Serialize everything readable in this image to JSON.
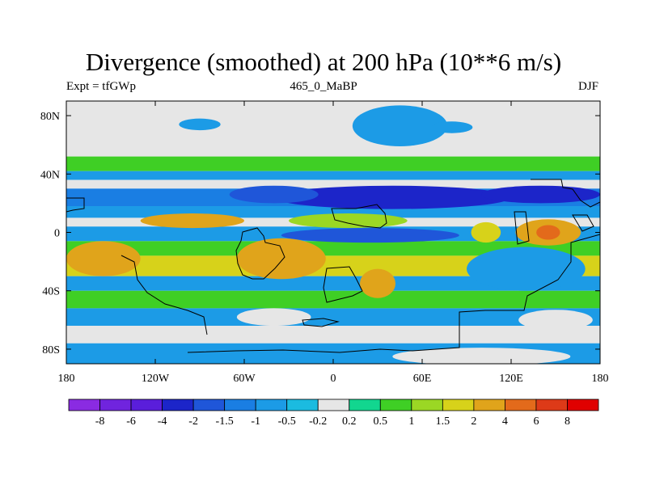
{
  "chart_data": {
    "type": "heatmap",
    "title": "Divergence (smoothed) at 200 hPa (10**6 m/s)",
    "subtitle_left": "Expt = tfGWp",
    "subtitle_center": "465_0_MaBP",
    "subtitle_right": "DJF",
    "x_ticks": [
      "180",
      "120W",
      "60W",
      "0",
      "60E",
      "120E",
      "180"
    ],
    "x_tick_values": [
      -180,
      -120,
      -60,
      0,
      60,
      120,
      180
    ],
    "y_ticks": [
      "80N",
      "40N",
      "0",
      "40S",
      "80S"
    ],
    "y_tick_values": [
      80,
      40,
      0,
      -40,
      -80
    ],
    "xlim": [
      -180,
      180
    ],
    "ylim": [
      -90,
      90
    ],
    "colorbar_labels": [
      "-8",
      "-6",
      "-4",
      "-2",
      "-1.5",
      "-1",
      "-0.5",
      "-0.2",
      "0.2",
      "0.5",
      "1",
      "1.5",
      "2",
      "4",
      "6",
      "8"
    ],
    "colorbar_colors": [
      "#8a2be2",
      "#7024de",
      "#5a1edb",
      "#1c25c9",
      "#1f56d9",
      "#1a7ee3",
      "#1c9be6",
      "#1bbbe0",
      "#e6e6e6",
      "#12d68f",
      "#3fcf25",
      "#9bd724",
      "#d7d21a",
      "#e0a41b",
      "#e36a1b",
      "#dd3a18",
      "#e00000"
    ],
    "bands": [
      {
        "lat_top": 90,
        "lat_bottom": 52,
        "value": 0.0
      },
      {
        "lat_top": 52,
        "lat_bottom": 42,
        "value": 0.8
      },
      {
        "lat_top": 42,
        "lat_bottom": 36,
        "value": -0.6
      },
      {
        "lat_top": 36,
        "lat_bottom": 30,
        "value": 0.0
      },
      {
        "lat_top": 30,
        "lat_bottom": 18,
        "value": -1.2
      },
      {
        "lat_top": 18,
        "lat_bottom": 10,
        "value": -0.7
      },
      {
        "lat_top": 10,
        "lat_bottom": 4,
        "value": 0.0
      },
      {
        "lat_top": 4,
        "lat_bottom": -6,
        "value": -1.0
      },
      {
        "lat_top": -6,
        "lat_bottom": -16,
        "value": 0.6
      },
      {
        "lat_top": -16,
        "lat_bottom": -30,
        "value": 1.6
      },
      {
        "lat_top": -30,
        "lat_bottom": -40,
        "value": -0.6
      },
      {
        "lat_top": -40,
        "lat_bottom": -52,
        "value": 0.7
      },
      {
        "lat_top": -52,
        "lat_bottom": -64,
        "value": -0.7
      },
      {
        "lat_top": -64,
        "lat_bottom": -76,
        "value": 0.0
      },
      {
        "lat_top": -76,
        "lat_bottom": -90,
        "value": -0.6
      }
    ],
    "blobs": [
      {
        "lon": -90,
        "lat": 74,
        "rlon": 14,
        "rlat": 4,
        "value": -0.6
      },
      {
        "lon": 45,
        "lat": 73,
        "rlon": 32,
        "rlat": 14,
        "value": -0.6
      },
      {
        "lon": 80,
        "lat": 72,
        "rlon": 14,
        "rlat": 4,
        "value": -0.6
      },
      {
        "lon": 40,
        "lat": 24,
        "rlon": 80,
        "rlat": 8,
        "value": -2.5
      },
      {
        "lon": 140,
        "lat": 26,
        "rlon": 40,
        "rlat": 6,
        "value": -2.5
      },
      {
        "lon": -40,
        "lat": 26,
        "rlon": 30,
        "rlat": 6,
        "value": -1.8
      },
      {
        "lon": -95,
        "lat": 8,
        "rlon": 35,
        "rlat": 5,
        "value": 2.5
      },
      {
        "lon": 10,
        "lat": 8,
        "rlon": 40,
        "rlat": 5,
        "value": 1.2
      },
      {
        "lon": 145,
        "lat": 0,
        "rlon": 22,
        "rlat": 9,
        "value": 3.5
      },
      {
        "lon": 145,
        "lat": 0,
        "rlon": 8,
        "rlat": 5,
        "value": 5.0
      },
      {
        "lon": 103,
        "lat": 0,
        "rlon": 10,
        "rlat": 7,
        "value": 1.6
      },
      {
        "lon": 25,
        "lat": -2,
        "rlon": 60,
        "rlat": 5,
        "value": -1.8
      },
      {
        "lon": -155,
        "lat": -18,
        "rlon": 25,
        "rlat": 12,
        "value": 2.5
      },
      {
        "lon": -35,
        "lat": -18,
        "rlon": 30,
        "rlat": 14,
        "value": 2.8
      },
      {
        "lon": 30,
        "lat": -35,
        "rlon": 12,
        "rlat": 10,
        "value": 2.2
      },
      {
        "lon": 130,
        "lat": -25,
        "rlon": 40,
        "rlat": 15,
        "value": -0.7
      },
      {
        "lon": -40,
        "lat": -58,
        "rlon": 25,
        "rlat": 6,
        "value": 0.0
      },
      {
        "lon": 150,
        "lat": -60,
        "rlon": 25,
        "rlat": 7,
        "value": 0.0
      },
      {
        "lon": 100,
        "lat": -85,
        "rlon": 60,
        "rlat": 6,
        "value": 0.0
      }
    ]
  }
}
